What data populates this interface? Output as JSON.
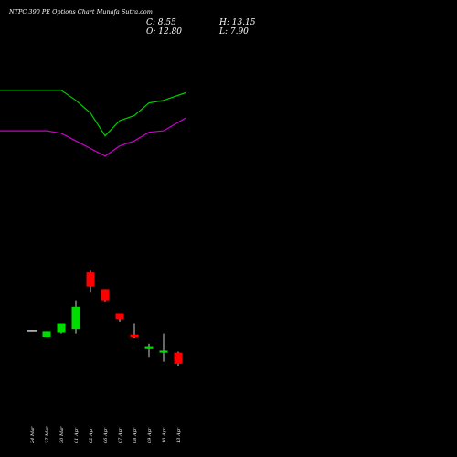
{
  "chart_data": {
    "type": "candlestick",
    "title": "NTPC 390 PE Options Chart Munafa Sutra.com",
    "ohlc_readout": {
      "close": "C: 8.55",
      "open": "O: 12.80",
      "high": "H: 13.15",
      "low": "L: 7.90"
    },
    "categories": [
      "24 Mar",
      "27 Mar",
      "30 Mar",
      "01 Apr",
      "02 Apr",
      "06 Apr",
      "07 Apr",
      "08 Apr",
      "09 Apr",
      "10 Apr",
      "13 Apr"
    ],
    "candles": [
      {
        "open": 20.5,
        "high": 20.6,
        "low": 20.4,
        "close": 20.5
      },
      {
        "open": 19.2,
        "high": 20.4,
        "low": 19.2,
        "close": 20.4
      },
      {
        "open": 20.2,
        "high": 22.0,
        "low": 20.0,
        "close": 22.0
      },
      {
        "open": 20.8,
        "high": 26.5,
        "low": 20.0,
        "close": 25.2
      },
      {
        "open": 32.0,
        "high": 32.5,
        "low": 28.0,
        "close": 29.2
      },
      {
        "open": 28.7,
        "high": 28.7,
        "low": 26.3,
        "close": 26.5
      },
      {
        "open": 24.0,
        "high": 24.0,
        "low": 22.3,
        "close": 22.8
      },
      {
        "open": 19.8,
        "high": 22.0,
        "low": 19.0,
        "close": 19.2
      },
      {
        "open": 16.9,
        "high": 18.0,
        "low": 15.2,
        "close": 17.3
      },
      {
        "open": 16.2,
        "high": 20.0,
        "low": 14.4,
        "close": 16.6
      },
      {
        "open": 16.2,
        "high": 16.4,
        "low": 13.6,
        "close": 14.0
      }
    ],
    "upper_band": [
      null,
      null,
      68,
      66,
      63.5,
      59,
      62,
      63,
      65.5,
      66,
      67.5
    ],
    "lower_band": [
      60,
      60,
      59.5,
      58,
      56.5,
      55,
      57,
      58,
      59.7,
      60,
      62.5
    ],
    "band_x": [
      0,
      1,
      2,
      3,
      4,
      5,
      6,
      7,
      8,
      9,
      10.5
    ],
    "ylim": [
      10,
      75
    ],
    "colors": {
      "background": "#000000",
      "up": "#00dd00",
      "down": "#ff0000",
      "neutral": "#ffffff",
      "upper_band": "#00cc00",
      "lower_band": "#cc00cc"
    }
  }
}
